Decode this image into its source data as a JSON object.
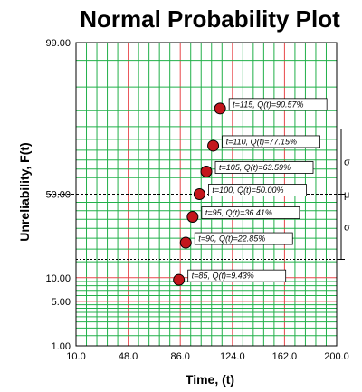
{
  "chart_data": {
    "type": "scatter",
    "title": "Normal Probability Plot",
    "xlabel": "Time, (t)",
    "ylabel": "Unreliability, F(t)",
    "xlim": [
      10.0,
      200.0
    ],
    "x_ticks": [
      10.0,
      48.0,
      86.0,
      124.0,
      162.0,
      200.0
    ],
    "x_tick_labels": [
      "10.0",
      "48.0",
      "86.0",
      "124.0",
      "162.0",
      "200.0"
    ],
    "y_scale": "normal-probability",
    "ylim": [
      1.0,
      99.0
    ],
    "y_tick_labels": [
      {
        "value": 99.0,
        "label": "99.00"
      },
      {
        "value": 50.0,
        "label": "50.00"
      },
      {
        "value": 10.0,
        "label": "10.00"
      },
      {
        "value": 5.0,
        "label": "5.00"
      },
      {
        "value": 1.0,
        "label": "1.00"
      }
    ],
    "points": [
      {
        "t": 85,
        "q": 9.43,
        "label": "t=85, Q(t)=9.43%"
      },
      {
        "t": 90,
        "q": 22.85,
        "label": "t=90, Q(t)=22.85%"
      },
      {
        "t": 95,
        "q": 36.41,
        "label": "t=95, Q(t)=36.41%"
      },
      {
        "t": 100,
        "q": 50.0,
        "label": "t=100, Q(t)=50.00%"
      },
      {
        "t": 105,
        "q": 63.59,
        "label": "t=105, Q(t)=63.59%"
      },
      {
        "t": 110,
        "q": 77.15,
        "label": "t=110, Q(t)=77.15%"
      },
      {
        "t": 115,
        "q": 90.57,
        "label": "t=115, Q(t)=90.57%"
      }
    ],
    "bracket_labels": [
      "σ",
      "μ",
      "σ"
    ],
    "colors": {
      "grid_green": "#22b04a",
      "grid_red": "#e8474a",
      "point_fill": "#c4161c",
      "point_stroke": "#000000",
      "frame": "#000000"
    }
  }
}
